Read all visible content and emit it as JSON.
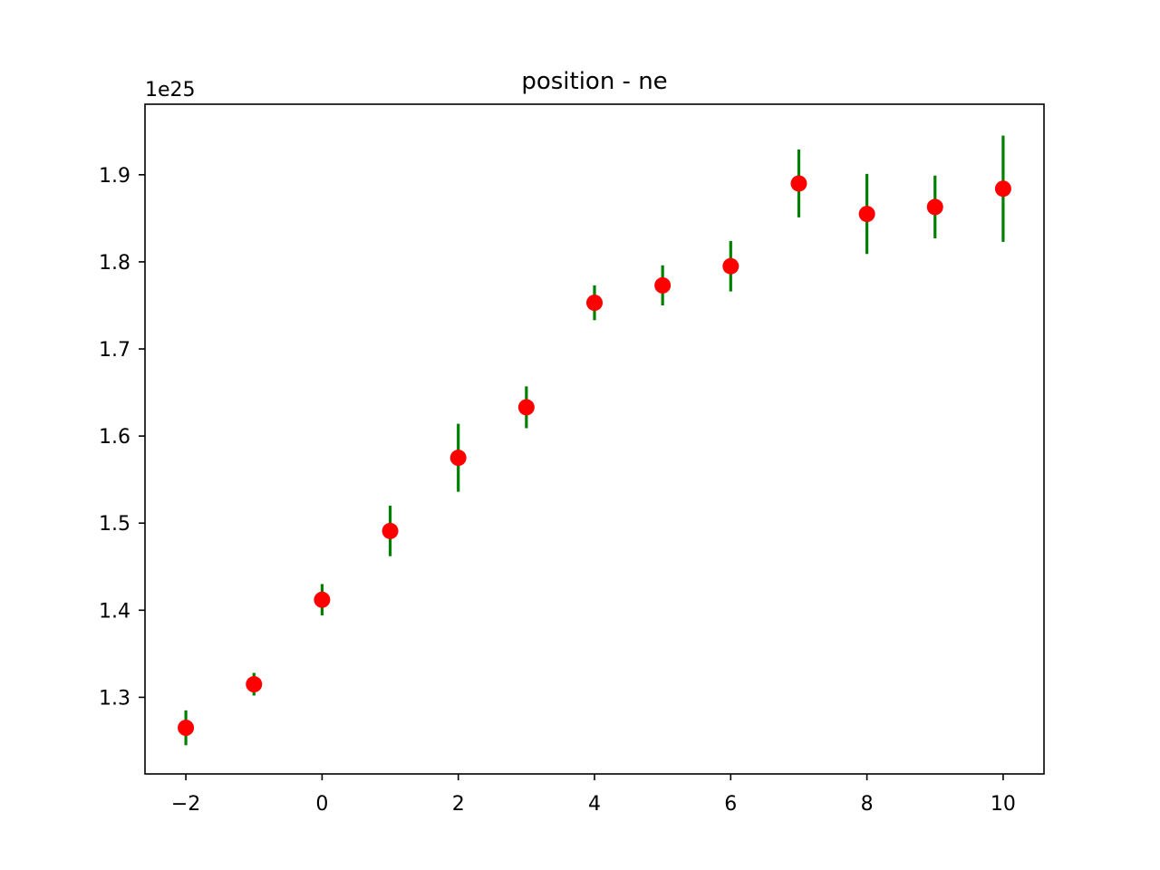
{
  "chart_data": {
    "type": "scatter",
    "title": "position - ne",
    "xlabel": "",
    "ylabel": "",
    "y_offset_label": "1e25",
    "xlim": [
      -2.6,
      10.6
    ],
    "ylim": [
      1.212,
      1.981
    ],
    "grid": false,
    "xticks": [
      -2,
      0,
      2,
      4,
      6,
      8,
      10
    ],
    "xtick_labels": [
      "−2",
      "0",
      "2",
      "4",
      "6",
      "8",
      "10"
    ],
    "yticks": [
      1.3,
      1.4,
      1.5,
      1.6,
      1.7,
      1.8,
      1.9
    ],
    "ytick_labels": [
      "1.3",
      "1.4",
      "1.5",
      "1.6",
      "1.7",
      "1.8",
      "1.9"
    ],
    "series": [
      {
        "marker_color": "#ff0000",
        "errorbar_color": "#008000",
        "points": [
          {
            "x": -2,
            "y": 1.265,
            "err": 0.02
          },
          {
            "x": -1,
            "y": 1.315,
            "err": 0.013
          },
          {
            "x": 0,
            "y": 1.412,
            "err": 0.018
          },
          {
            "x": 1,
            "y": 1.491,
            "err": 0.029
          },
          {
            "x": 2,
            "y": 1.575,
            "err": 0.039
          },
          {
            "x": 3,
            "y": 1.633,
            "err": 0.024
          },
          {
            "x": 4,
            "y": 1.753,
            "err": 0.02
          },
          {
            "x": 5,
            "y": 1.773,
            "err": 0.023
          },
          {
            "x": 6,
            "y": 1.795,
            "err": 0.029
          },
          {
            "x": 7,
            "y": 1.89,
            "err": 0.039
          },
          {
            "x": 8,
            "y": 1.855,
            "err": 0.046
          },
          {
            "x": 9,
            "y": 1.863,
            "err": 0.036
          },
          {
            "x": 10,
            "y": 1.884,
            "err": 0.061
          }
        ]
      }
    ]
  }
}
